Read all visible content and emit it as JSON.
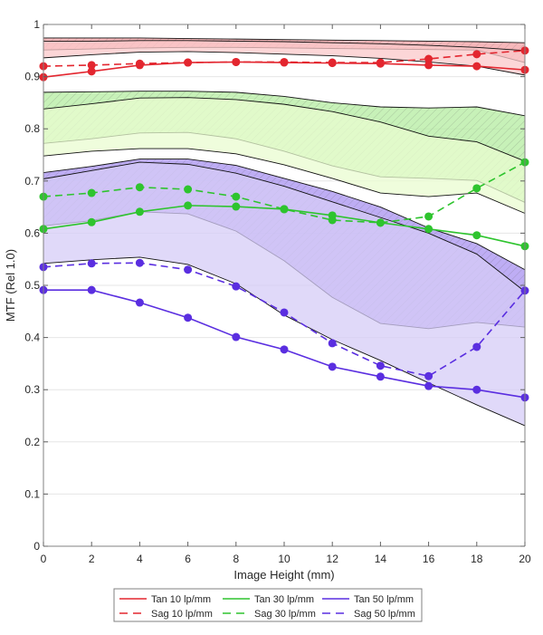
{
  "chart_data": {
    "type": "line",
    "title": "",
    "xlabel": "Image Height (mm)",
    "ylabel": "MTF (Rel 1.0)",
    "xlim": [
      0,
      20
    ],
    "ylim": [
      0,
      1
    ],
    "grid": "horizontal",
    "x_ticks": [
      0,
      2,
      4,
      6,
      8,
      10,
      12,
      14,
      16,
      18,
      20
    ],
    "x_tick_labels": [
      "0",
      "2",
      "4",
      "6",
      "8",
      "10",
      "12",
      "14",
      "16",
      "18",
      "20"
    ],
    "y_ticks": [
      0,
      0.1,
      0.2,
      0.3,
      0.4,
      0.5,
      0.6,
      0.7,
      0.8,
      0.9,
      1
    ],
    "y_tick_labels": [
      "0",
      "0.1",
      "0.2",
      "0.3",
      "0.4",
      "0.5",
      "0.6",
      "0.7",
      "0.8",
      "0.9",
      "1"
    ],
    "x": [
      0,
      2,
      4,
      6,
      8,
      10,
      12,
      14,
      16,
      18,
      20
    ],
    "legend_position": "bottom-center",
    "series": [
      {
        "name": "Tan 10 lp/mm",
        "color": "#e3262f",
        "style": "solid",
        "values": [
          0.899,
          0.91,
          0.922,
          0.927,
          0.928,
          0.927,
          0.926,
          0.925,
          0.922,
          0.92,
          0.913
        ]
      },
      {
        "name": "Sag 10 lp/mm",
        "color": "#e3262f",
        "style": "dashed",
        "values": [
          0.92,
          0.922,
          0.925,
          0.927,
          0.928,
          0.928,
          0.927,
          0.927,
          0.934,
          0.943,
          0.95
        ]
      },
      {
        "name": "Tan 30 lp/mm",
        "color": "#2ec42e",
        "style": "solid",
        "values": [
          0.608,
          0.621,
          0.641,
          0.653,
          0.651,
          0.646,
          0.634,
          0.62,
          0.608,
          0.596,
          0.575
        ]
      },
      {
        "name": "Sag 30 lp/mm",
        "color": "#2ec42e",
        "style": "dashed",
        "values": [
          0.67,
          0.677,
          0.688,
          0.684,
          0.67,
          0.646,
          0.625,
          0.62,
          0.632,
          0.686,
          0.736
        ]
      },
      {
        "name": "Tan 50 lp/mm",
        "color": "#5a2ee0",
        "style": "solid",
        "values": [
          0.491,
          0.491,
          0.467,
          0.438,
          0.401,
          0.377,
          0.344,
          0.325,
          0.307,
          0.3,
          0.285
        ]
      },
      {
        "name": "Sag 50 lp/mm",
        "color": "#5a2ee0",
        "style": "dashed",
        "values": [
          0.535,
          0.542,
          0.543,
          0.53,
          0.498,
          0.448,
          0.389,
          0.346,
          0.326,
          0.382,
          0.49
        ]
      }
    ],
    "bands": [
      {
        "name": "Sag 10 lp/mm tolerance",
        "fill": "#f4a0a4",
        "hatched": true,
        "upper": [
          0.974,
          0.974,
          0.974,
          0.973,
          0.972,
          0.971,
          0.97,
          0.969,
          0.968,
          0.967,
          0.965
        ],
        "lower": [
          0.951,
          0.953,
          0.955,
          0.956,
          0.956,
          0.955,
          0.954,
          0.953,
          0.952,
          0.951,
          0.927
        ]
      },
      {
        "name": "Tan 10 lp/mm tolerance",
        "fill": "#fbc8ca",
        "hatched": false,
        "upper": [
          0.968,
          0.968,
          0.969,
          0.969,
          0.968,
          0.967,
          0.965,
          0.963,
          0.96,
          0.956,
          0.95
        ],
        "lower": [
          0.936,
          0.942,
          0.947,
          0.948,
          0.946,
          0.943,
          0.94,
          0.935,
          0.928,
          0.92,
          0.903
        ]
      },
      {
        "name": "Sag 30 lp/mm tolerance",
        "fill": "#b4eca0",
        "hatched": true,
        "upper": [
          0.87,
          0.871,
          0.872,
          0.872,
          0.87,
          0.862,
          0.85,
          0.842,
          0.84,
          0.842,
          0.825
        ],
        "lower": [
          0.772,
          0.781,
          0.792,
          0.793,
          0.781,
          0.757,
          0.729,
          0.708,
          0.705,
          0.701,
          0.659
        ]
      },
      {
        "name": "Tan 30 lp/mm tolerance",
        "fill": "#eafcd0",
        "hatched": false,
        "upper": [
          0.838,
          0.848,
          0.859,
          0.86,
          0.856,
          0.847,
          0.833,
          0.813,
          0.786,
          0.775,
          0.738
        ],
        "lower": [
          0.748,
          0.757,
          0.762,
          0.762,
          0.752,
          0.731,
          0.705,
          0.677,
          0.67,
          0.677,
          0.638
        ]
      },
      {
        "name": "Sag 50 lp/mm tolerance",
        "fill": "#a891f0",
        "hatched": true,
        "upper": [
          0.716,
          0.728,
          0.742,
          0.742,
          0.73,
          0.705,
          0.68,
          0.65,
          0.61,
          0.58,
          0.53
        ],
        "lower": [
          0.614,
          0.624,
          0.641,
          0.637,
          0.604,
          0.547,
          0.477,
          0.427,
          0.417,
          0.429,
          0.42
        ]
      },
      {
        "name": "Tan 50 lp/mm tolerance",
        "fill": "#d6ccf7",
        "hatched": false,
        "upper": [
          0.704,
          0.72,
          0.736,
          0.732,
          0.715,
          0.69,
          0.66,
          0.63,
          0.6,
          0.56,
          0.488
        ],
        "lower": [
          0.542,
          0.549,
          0.554,
          0.54,
          0.503,
          0.443,
          0.396,
          0.356,
          0.313,
          0.271,
          0.231
        ]
      }
    ]
  }
}
